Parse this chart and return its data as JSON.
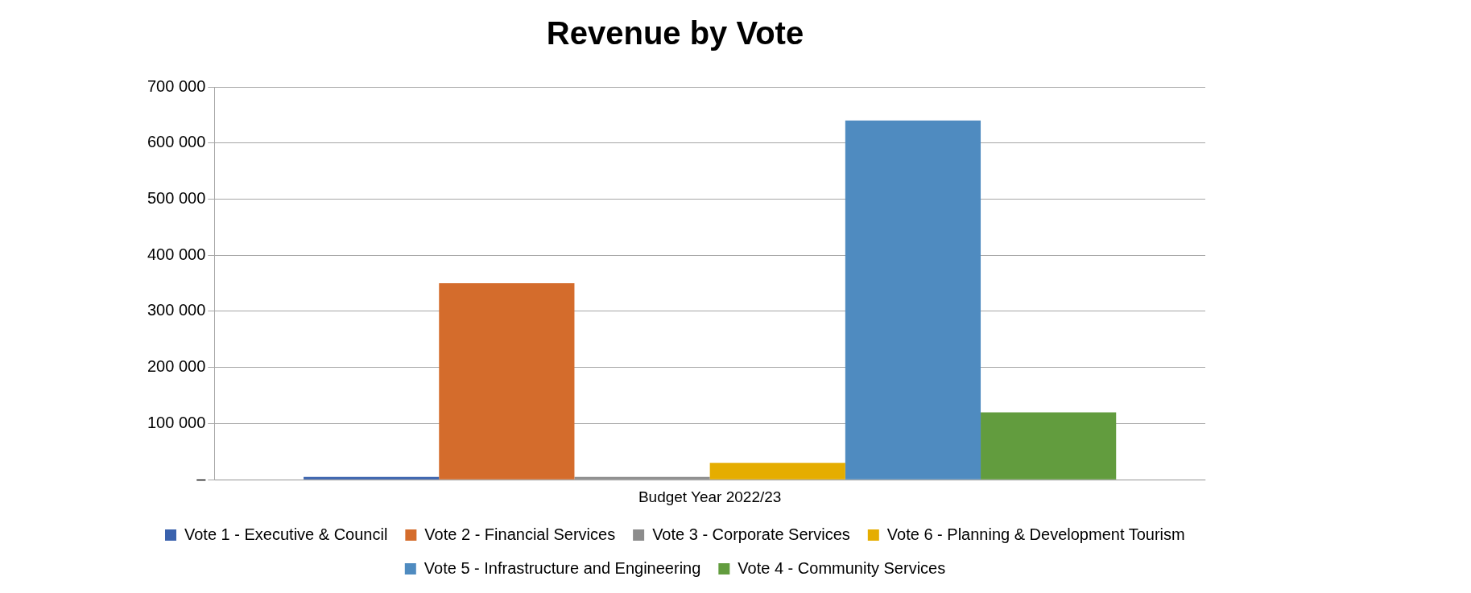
{
  "chart_data": {
    "type": "bar",
    "title": "Revenue by Vote",
    "categories": [
      "Budget Year 2022/23"
    ],
    "series": [
      {
        "name": "Vote 1 - Executive & Council",
        "color": "#3a62ad",
        "values": [
          5000
        ]
      },
      {
        "name": "Vote 2 - Financial Services",
        "color": "#d46c2c",
        "values": [
          350000
        ]
      },
      {
        "name": "Vote 3 - Corporate Services",
        "color": "#8c8c8c",
        "values": [
          5000
        ]
      },
      {
        "name": "Vote 6 - Planning & Development Tourism",
        "color": "#e5ad00",
        "values": [
          30000
        ]
      },
      {
        "name": "Vote 5 - Infrastructure and Engineering",
        "color": "#4f8bc0",
        "values": [
          640000
        ]
      },
      {
        "name": "Vote 4 - Community Services",
        "color": "#629c3e",
        "values": [
          120000
        ]
      }
    ],
    "ylim": [
      0,
      700000
    ],
    "yticks": [
      {
        "value": 0,
        "label": "–"
      },
      {
        "value": 100000,
        "label": "100 000"
      },
      {
        "value": 200000,
        "label": "200 000"
      },
      {
        "value": 300000,
        "label": "300 000"
      },
      {
        "value": 400000,
        "label": "400 000"
      },
      {
        "value": 500000,
        "label": "500 000"
      },
      {
        "value": 600000,
        "label": "600 000"
      },
      {
        "value": 700000,
        "label": "700 000"
      }
    ],
    "grid": "y",
    "legend": "bottom"
  }
}
